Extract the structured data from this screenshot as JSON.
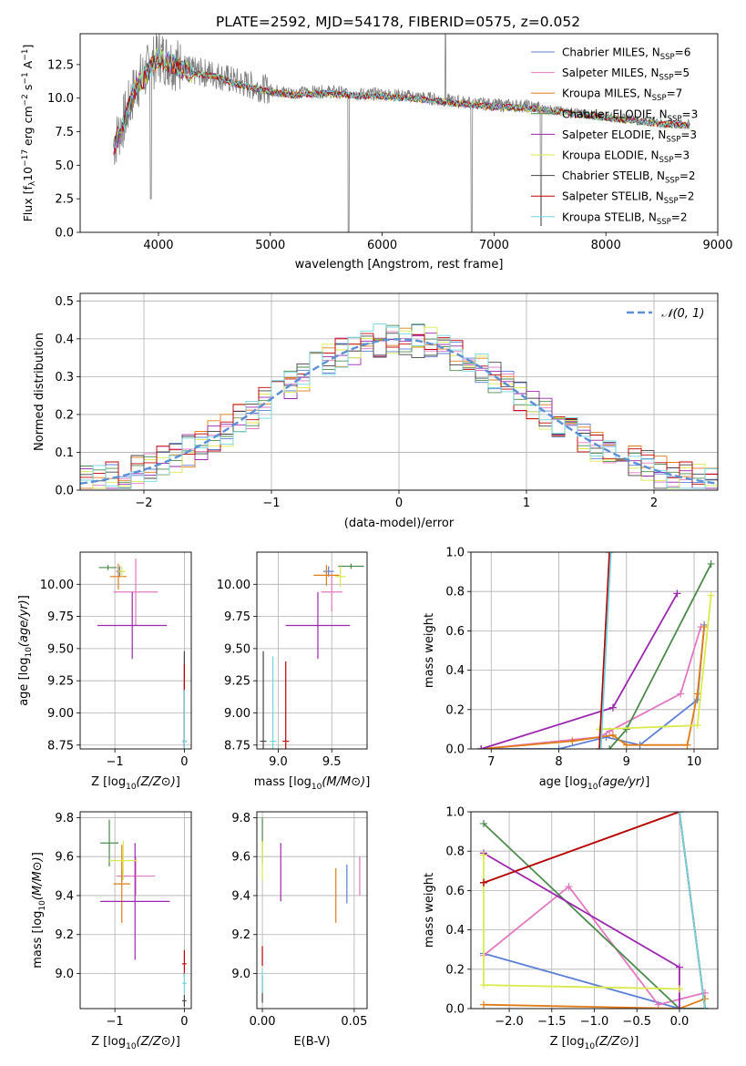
{
  "figure_title": "PLATE=2592, MJD=54178, FIBERID=0575, z=0.052",
  "colors": {
    "chabrier_miles": "#5b7fd6",
    "salpeter_miles": "#e377c2",
    "kroupa_miles": "#e07b18",
    "chabrier_elodie": "#4c8a4c",
    "salpeter_elodie": "#9b27af",
    "kroupa_elodie": "#d9ea4a",
    "chabrier_stelib": "#444444",
    "salpeter_stelib": "#c00000",
    "kroupa_stelib": "#6fd6e0",
    "spectrum": "#7f7f7f",
    "gaussian": "#5b8fd6",
    "grid": "#b0b0b0"
  },
  "legend_models": [
    {
      "base": "Chabrier MILES, N",
      "sub": "SSP",
      "tail": "=6",
      "key": "chabrier_miles"
    },
    {
      "base": "Salpeter MILES, N",
      "sub": "SSP",
      "tail": "=5",
      "key": "salpeter_miles"
    },
    {
      "base": "Kroupa MILES, N",
      "sub": "SSP",
      "tail": "=7",
      "key": "kroupa_miles"
    },
    {
      "base": "Chabrier ELODIE, N",
      "sub": "SSP",
      "tail": "=3",
      "key": "chabrier_elodie"
    },
    {
      "base": "Salpeter ELODIE, N",
      "sub": "SSP",
      "tail": "=3",
      "key": "salpeter_elodie"
    },
    {
      "base": "Kroupa ELODIE, N",
      "sub": "SSP",
      "tail": "=3",
      "key": "kroupa_elodie"
    },
    {
      "base": "Chabrier STELIB, N",
      "sub": "SSP",
      "tail": "=2",
      "key": "chabrier_stelib"
    },
    {
      "base": "Salpeter STELIB, N",
      "sub": "SSP",
      "tail": "=2",
      "key": "salpeter_stelib"
    },
    {
      "base": "Kroupa STELIB, N",
      "sub": "SSP",
      "tail": "=2",
      "key": "kroupa_stelib"
    }
  ],
  "chart_data": [
    {
      "id": "spectrum",
      "type": "line",
      "xlabel": "wavelength [Angstrom, rest frame]",
      "ylabel": "Flux [fλ10⁻¹⁷ erg cm⁻² s⁻¹ A⁻¹]",
      "xlim": [
        3300,
        9000
      ],
      "ylim": [
        0,
        14.8
      ],
      "xticks": [
        4000,
        5000,
        6000,
        7000,
        8000,
        9000
      ],
      "yticks": [
        0.0,
        2.5,
        5.0,
        7.5,
        10.0,
        12.5
      ],
      "grid": false,
      "legend_position": "top-right",
      "series_note": "observed spectrum (grey) with nine model fits",
      "spectrum_envelope": {
        "x": [
          3600,
          3700,
          3800,
          3900,
          4000,
          4100,
          4300,
          4500,
          4700,
          5000,
          5200,
          5500,
          5800,
          6000,
          6300,
          6600,
          7000,
          7300,
          7500,
          8000,
          8500,
          8750
        ],
        "y": [
          6.5,
          8.5,
          11.0,
          12.0,
          13.2,
          12.8,
          12.0,
          11.8,
          11.2,
          10.6,
          10.4,
          10.5,
          10.3,
          10.3,
          10.1,
          9.8,
          9.5,
          9.4,
          9.2,
          8.7,
          8.2,
          8.1
        ]
      }
    },
    {
      "id": "residuals",
      "type": "histogram",
      "xlabel": "(data-model)/error",
      "ylabel": "Normed distribution",
      "xlim": [
        -2.5,
        2.5
      ],
      "ylim": [
        0,
        0.52
      ],
      "xticks": [
        -2,
        -1,
        0,
        1,
        2
      ],
      "yticks": [
        0.0,
        0.1,
        0.2,
        0.3,
        0.4,
        0.5
      ],
      "grid": true,
      "legend": [
        "𝒩(0, 1)"
      ],
      "legend_position": "top-right",
      "note": "nine step histograms following the normal curve"
    },
    {
      "id": "age_vs_Z",
      "type": "scatter",
      "xlabel": "Z [log10(Z/Z⊙)]",
      "ylabel": "age  [log10(age/yr)]",
      "xlim": [
        -1.5,
        0.1
      ],
      "ylim": [
        8.72,
        10.25
      ],
      "xticks": [
        -1,
        0
      ],
      "yticks": [
        8.75,
        9.0,
        9.25,
        9.5,
        9.75,
        10.0
      ],
      "grid": true,
      "points": [
        {
          "key": "chabrier_miles",
          "x": -0.93,
          "y": 10.1,
          "xerr": 0.05,
          "yerr": 0.04
        },
        {
          "key": "salpeter_miles",
          "x": -0.7,
          "y": 9.94,
          "xerr": 0.32,
          "yerr": 0.26
        },
        {
          "key": "kroupa_miles",
          "x": -0.95,
          "y": 10.06,
          "xerr": 0.12,
          "yerr": 0.1
        },
        {
          "key": "chabrier_elodie",
          "x": -1.1,
          "y": 10.13,
          "xerr": 0.13,
          "yerr": 0.02
        },
        {
          "key": "salpeter_elodie",
          "x": -0.75,
          "y": 9.68,
          "xerr": 0.5,
          "yerr": 0.26
        },
        {
          "key": "kroupa_elodie",
          "x": -0.9,
          "y": 10.1,
          "xerr": 0.05,
          "yerr": 0.04
        },
        {
          "key": "chabrier_stelib",
          "x": 0.0,
          "y": 8.78,
          "xerr": 0.03,
          "yerr": 0.7
        },
        {
          "key": "salpeter_stelib",
          "x": 0.0,
          "y": 8.78,
          "xerr": 0.03,
          "yerr": 0.6
        },
        {
          "key": "kroupa_stelib",
          "x": 0.0,
          "y": 8.78,
          "xerr": 0.03,
          "yerr": 0.4
        }
      ]
    },
    {
      "id": "age_vs_mass",
      "type": "scatter",
      "xlabel": "mass [log10(M/M⊙)]",
      "xlim": [
        8.8,
        9.83
      ],
      "ylim": [
        8.72,
        10.25
      ],
      "xticks": [
        9.0,
        9.5
      ],
      "yticks": [
        8.75,
        9.0,
        9.25,
        9.5,
        9.75,
        10.0
      ],
      "grid": true,
      "points": [
        {
          "key": "chabrier_miles",
          "x": 9.47,
          "y": 10.1,
          "xerr": 0.05,
          "yerr": 0.04
        },
        {
          "key": "salpeter_miles",
          "x": 9.5,
          "y": 9.94,
          "xerr": 0.1,
          "yerr": 0.15
        },
        {
          "key": "kroupa_miles",
          "x": 9.45,
          "y": 10.07,
          "xerr": 0.12,
          "yerr": 0.08
        },
        {
          "key": "chabrier_elodie",
          "x": 9.68,
          "y": 10.14,
          "xerr": 0.12,
          "yerr": 0.02
        },
        {
          "key": "salpeter_elodie",
          "x": 9.37,
          "y": 9.68,
          "xerr": 0.3,
          "yerr": 0.26
        },
        {
          "key": "kroupa_elodie",
          "x": 9.58,
          "y": 10.06,
          "xerr": 0.05,
          "yerr": 0.08
        },
        {
          "key": "chabrier_stelib",
          "x": 8.86,
          "y": 8.78,
          "xerr": 0.03,
          "yerr": 0.7
        },
        {
          "key": "salpeter_stelib",
          "x": 9.07,
          "y": 8.78,
          "xerr": 0.03,
          "yerr": 0.62
        },
        {
          "key": "kroupa_stelib",
          "x": 8.95,
          "y": 8.78,
          "xerr": 0.03,
          "yerr": 0.66
        }
      ]
    },
    {
      "id": "mass_weight_vs_age",
      "type": "line",
      "xlabel": "age  [log10(age/yr)]",
      "ylabel": "mass weight",
      "xlim": [
        6.7,
        10.35
      ],
      "ylim": [
        0.0,
        1.0
      ],
      "xticks": [
        7,
        8,
        9,
        10
      ],
      "yticks": [
        0.0,
        0.2,
        0.4,
        0.6,
        0.8,
        1.0
      ],
      "grid": true,
      "series": [
        {
          "key": "chabrier_miles",
          "x": [
            6.85,
            8.0,
            8.7,
            9.2,
            10.05,
            10.15
          ],
          "y": [
            0.0,
            0.0,
            0.06,
            0.02,
            0.25,
            0.63
          ]
        },
        {
          "key": "salpeter_miles",
          "x": [
            6.85,
            8.6,
            8.75,
            9.8,
            10.1
          ],
          "y": [
            0.0,
            0.06,
            0.09,
            0.28,
            0.62
          ]
        },
        {
          "key": "kroupa_miles",
          "x": [
            6.85,
            8.2,
            8.8,
            9.0,
            9.9,
            10.05,
            10.15
          ],
          "y": [
            0.0,
            0.04,
            0.07,
            0.02,
            0.02,
            0.28,
            0.62
          ]
        },
        {
          "key": "chabrier_elodie",
          "x": [
            8.75,
            9.0,
            10.25
          ],
          "y": [
            0.0,
            0.1,
            0.94
          ]
        },
        {
          "key": "salpeter_elodie",
          "x": [
            6.85,
            8.8,
            9.75
          ],
          "y": [
            0.0,
            0.21,
            0.79
          ]
        },
        {
          "key": "kroupa_elodie",
          "x": [
            8.6,
            10.05,
            10.25
          ],
          "y": [
            0.1,
            0.12,
            0.78
          ]
        },
        {
          "key": "chabrier_stelib",
          "x": [
            8.6,
            8.75
          ],
          "y": [
            0.0,
            1.0
          ]
        },
        {
          "key": "salpeter_stelib",
          "x": [
            8.6,
            8.75
          ],
          "y": [
            0.0,
            1.0
          ]
        },
        {
          "key": "kroupa_stelib",
          "x": [
            8.62,
            8.77
          ],
          "y": [
            0.0,
            1.0
          ]
        }
      ]
    },
    {
      "id": "mass_vs_Z",
      "type": "scatter",
      "xlabel": "Z [log10(Z/Z⊙)]",
      "ylabel": "mass [log10(M/M⊙)]",
      "xlim": [
        -1.5,
        0.1
      ],
      "ylim": [
        8.82,
        9.83
      ],
      "xticks": [
        -1,
        0
      ],
      "yticks": [
        9.0,
        9.2,
        9.4,
        9.6,
        9.8
      ],
      "grid": true,
      "points": [
        {
          "key": "chabrier_miles",
          "x": -0.9,
          "y": 9.5,
          "xerr": 0.05,
          "yerr": 0.03
        },
        {
          "key": "salpeter_miles",
          "x": -0.7,
          "y": 9.5,
          "xerr": 0.28,
          "yerr": 0.1
        },
        {
          "key": "kroupa_miles",
          "x": -0.9,
          "y": 9.46,
          "xerr": 0.12,
          "yerr": 0.2
        },
        {
          "key": "chabrier_elodie",
          "x": -1.08,
          "y": 9.67,
          "xerr": 0.13,
          "yerr": 0.12
        },
        {
          "key": "salpeter_elodie",
          "x": -0.71,
          "y": 9.37,
          "xerr": 0.5,
          "yerr": 0.3
        },
        {
          "key": "kroupa_elodie",
          "x": -0.88,
          "y": 9.58,
          "xerr": 0.2,
          "yerr": 0.1
        },
        {
          "key": "chabrier_stelib",
          "x": 0.0,
          "y": 8.86,
          "xerr": 0.03,
          "yerr": 0.03
        },
        {
          "key": "salpeter_stelib",
          "x": 0.0,
          "y": 9.05,
          "xerr": 0.03,
          "yerr": 0.07
        },
        {
          "key": "kroupa_stelib",
          "x": 0.0,
          "y": 8.95,
          "xerr": 0.03,
          "yerr": 0.05
        }
      ]
    },
    {
      "id": "mass_vs_ebv",
      "type": "scatter",
      "xlabel": "E(B-V)",
      "xlim": [
        -0.003,
        0.057
      ],
      "ylim": [
        8.82,
        9.83
      ],
      "xticks": [
        0.0,
        0.05
      ],
      "yticks": [
        9.0,
        9.2,
        9.4,
        9.6,
        9.8
      ],
      "grid": true,
      "points": [
        {
          "key": "chabrier_miles",
          "x": 0.046,
          "y": 9.46,
          "yerr": 0.1
        },
        {
          "key": "salpeter_miles",
          "x": 0.053,
          "y": 9.5,
          "yerr": 0.1
        },
        {
          "key": "kroupa_miles",
          "x": 0.04,
          "y": 9.4,
          "yerr": 0.14
        },
        {
          "key": "chabrier_elodie",
          "x": 0.0,
          "y": 9.68,
          "yerr": 0.12
        },
        {
          "key": "salpeter_elodie",
          "x": 0.01,
          "y": 9.52,
          "yerr": 0.15
        },
        {
          "key": "kroupa_elodie",
          "x": 0.0,
          "y": 9.58,
          "yerr": 0.1
        },
        {
          "key": "chabrier_stelib",
          "x": 0.0,
          "y": 8.92,
          "yerr": 0.07
        },
        {
          "key": "salpeter_stelib",
          "x": 0.0,
          "y": 9.09,
          "yerr": 0.05
        },
        {
          "key": "kroupa_stelib",
          "x": 0.0,
          "y": 8.96,
          "yerr": 0.06
        }
      ]
    },
    {
      "id": "mass_weight_vs_Z",
      "type": "line",
      "xlabel": "Z [log10(Z/Z⊙)]",
      "ylabel": "mass weight",
      "xlim": [
        -2.45,
        0.45
      ],
      "ylim": [
        0.0,
        1.0
      ],
      "xticks": [
        -2.0,
        -1.5,
        -1.0,
        -0.5,
        0.0
      ],
      "yticks": [
        0.0,
        0.2,
        0.4,
        0.6,
        0.8,
        1.0
      ],
      "grid": true,
      "series": [
        {
          "key": "chabrier_miles",
          "x": [
            -2.3,
            0.0,
            0.3
          ],
          "y": [
            0.28,
            0.0,
            0.0
          ]
        },
        {
          "key": "salpeter_miles",
          "x": [
            -2.3,
            -1.3,
            -0.25,
            0.3
          ],
          "y": [
            0.27,
            0.62,
            0.02,
            0.08
          ]
        },
        {
          "key": "kroupa_miles",
          "x": [
            -2.3,
            0.0,
            0.3
          ],
          "y": [
            0.02,
            0.0,
            0.05
          ]
        },
        {
          "key": "chabrier_elodie",
          "x": [
            -2.3,
            0.0,
            0.3
          ],
          "y": [
            0.94,
            0.0,
            0.0
          ]
        },
        {
          "key": "salpeter_elodie",
          "x": [
            -2.3,
            0.0,
            0.0
          ],
          "y": [
            0.79,
            0.21,
            0.0
          ]
        },
        {
          "key": "kroupa_elodie",
          "x": [
            -2.3,
            -2.3,
            0.0
          ],
          "y": [
            0.78,
            0.12,
            0.1
          ]
        },
        {
          "key": "chabrier_stelib",
          "x": [
            -2.3,
            0.0,
            0.3
          ],
          "y": [
            0.64,
            1.0,
            0.0
          ]
        },
        {
          "key": "salpeter_stelib",
          "x": [
            -2.3,
            0.0,
            0.3
          ],
          "y": [
            0.64,
            1.0,
            0.0
          ]
        },
        {
          "key": "kroupa_stelib",
          "x": [
            0.0,
            0.3
          ],
          "y": [
            1.0,
            0.0
          ]
        }
      ]
    }
  ]
}
